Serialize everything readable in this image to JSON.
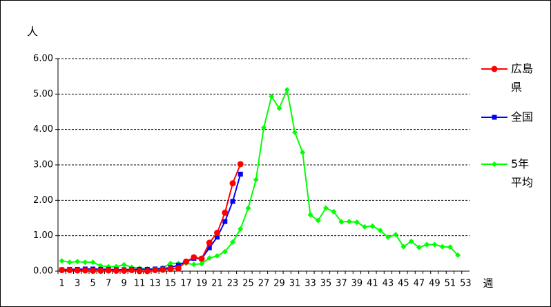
{
  "chart_data": {
    "type": "line",
    "y_label": "人",
    "x_label": "週",
    "categories": [
      "1",
      null,
      "3",
      null,
      "5",
      null,
      "7",
      null,
      "9",
      null,
      "11",
      null,
      "13",
      null,
      "15",
      null,
      "17",
      null,
      "19",
      null,
      "21",
      null,
      "23",
      null,
      "25",
      null,
      "27",
      null,
      "29",
      null,
      "31",
      null,
      "33",
      null,
      "35",
      null,
      "37",
      null,
      "39",
      null,
      "41",
      null,
      "43",
      null,
      "45",
      null,
      "47",
      null,
      "49",
      null,
      "51",
      null,
      "53"
    ],
    "series": [
      {
        "name": "広島県",
        "color": "#ff0000",
        "marker": "circle",
        "values": [
          0.03,
          0.03,
          0.02,
          0.02,
          0.01,
          0.01,
          0.02,
          0.01,
          0.01,
          0.03,
          0.0,
          0.0,
          0.03,
          0.04,
          0.06,
          0.08,
          0.27,
          0.39,
          0.35,
          0.8,
          1.08,
          1.65,
          2.48,
          3.02,
          null,
          null,
          null,
          null,
          null,
          null,
          null,
          null,
          null,
          null,
          null,
          null,
          null,
          null,
          null,
          null,
          null,
          null,
          null,
          null,
          null,
          null,
          null,
          null,
          null,
          null,
          null,
          null,
          null
        ]
      },
      {
        "name": "全国",
        "color": "#0000ff",
        "marker": "square",
        "values": [
          0.04,
          0.05,
          0.05,
          0.06,
          0.06,
          0.05,
          0.05,
          0.04,
          0.04,
          0.05,
          0.05,
          0.05,
          0.06,
          0.07,
          0.1,
          0.17,
          0.27,
          0.36,
          0.35,
          0.66,
          0.96,
          1.4,
          1.97,
          2.74,
          null,
          null,
          null,
          null,
          null,
          null,
          null,
          null,
          null,
          null,
          null,
          null,
          null,
          null,
          null,
          null,
          null,
          null,
          null,
          null,
          null,
          null,
          null,
          null,
          null,
          null,
          null,
          null,
          null
        ]
      },
      {
        "name": "5年平均",
        "color": "#00ff00",
        "marker": "diamond",
        "values": [
          0.29,
          0.25,
          0.27,
          0.25,
          0.25,
          0.15,
          0.13,
          0.13,
          0.18,
          0.11,
          0.08,
          0.06,
          0.06,
          0.1,
          0.22,
          0.22,
          0.22,
          0.19,
          0.21,
          0.37,
          0.43,
          0.55,
          0.82,
          1.19,
          1.78,
          2.58,
          4.05,
          4.93,
          4.6,
          5.12,
          3.92,
          3.35,
          1.59,
          1.43,
          1.78,
          1.68,
          1.39,
          1.4,
          1.38,
          1.25,
          1.27,
          1.15,
          0.96,
          1.03,
          0.69,
          0.84,
          0.67,
          0.75,
          0.75,
          0.69,
          0.68,
          0.45,
          null
        ]
      }
    ],
    "ylim": [
      0,
      6
    ],
    "yticks": [
      {
        "value": 0,
        "label": "0.00"
      },
      {
        "value": 1,
        "label": "1.00"
      },
      {
        "value": 2,
        "label": "2.00"
      },
      {
        "value": 3,
        "label": "3.00"
      },
      {
        "value": 4,
        "label": "4.00"
      },
      {
        "value": 5,
        "label": "5.00"
      },
      {
        "value": 6,
        "label": "6.00"
      }
    ],
    "grid": true,
    "legend": "right"
  }
}
